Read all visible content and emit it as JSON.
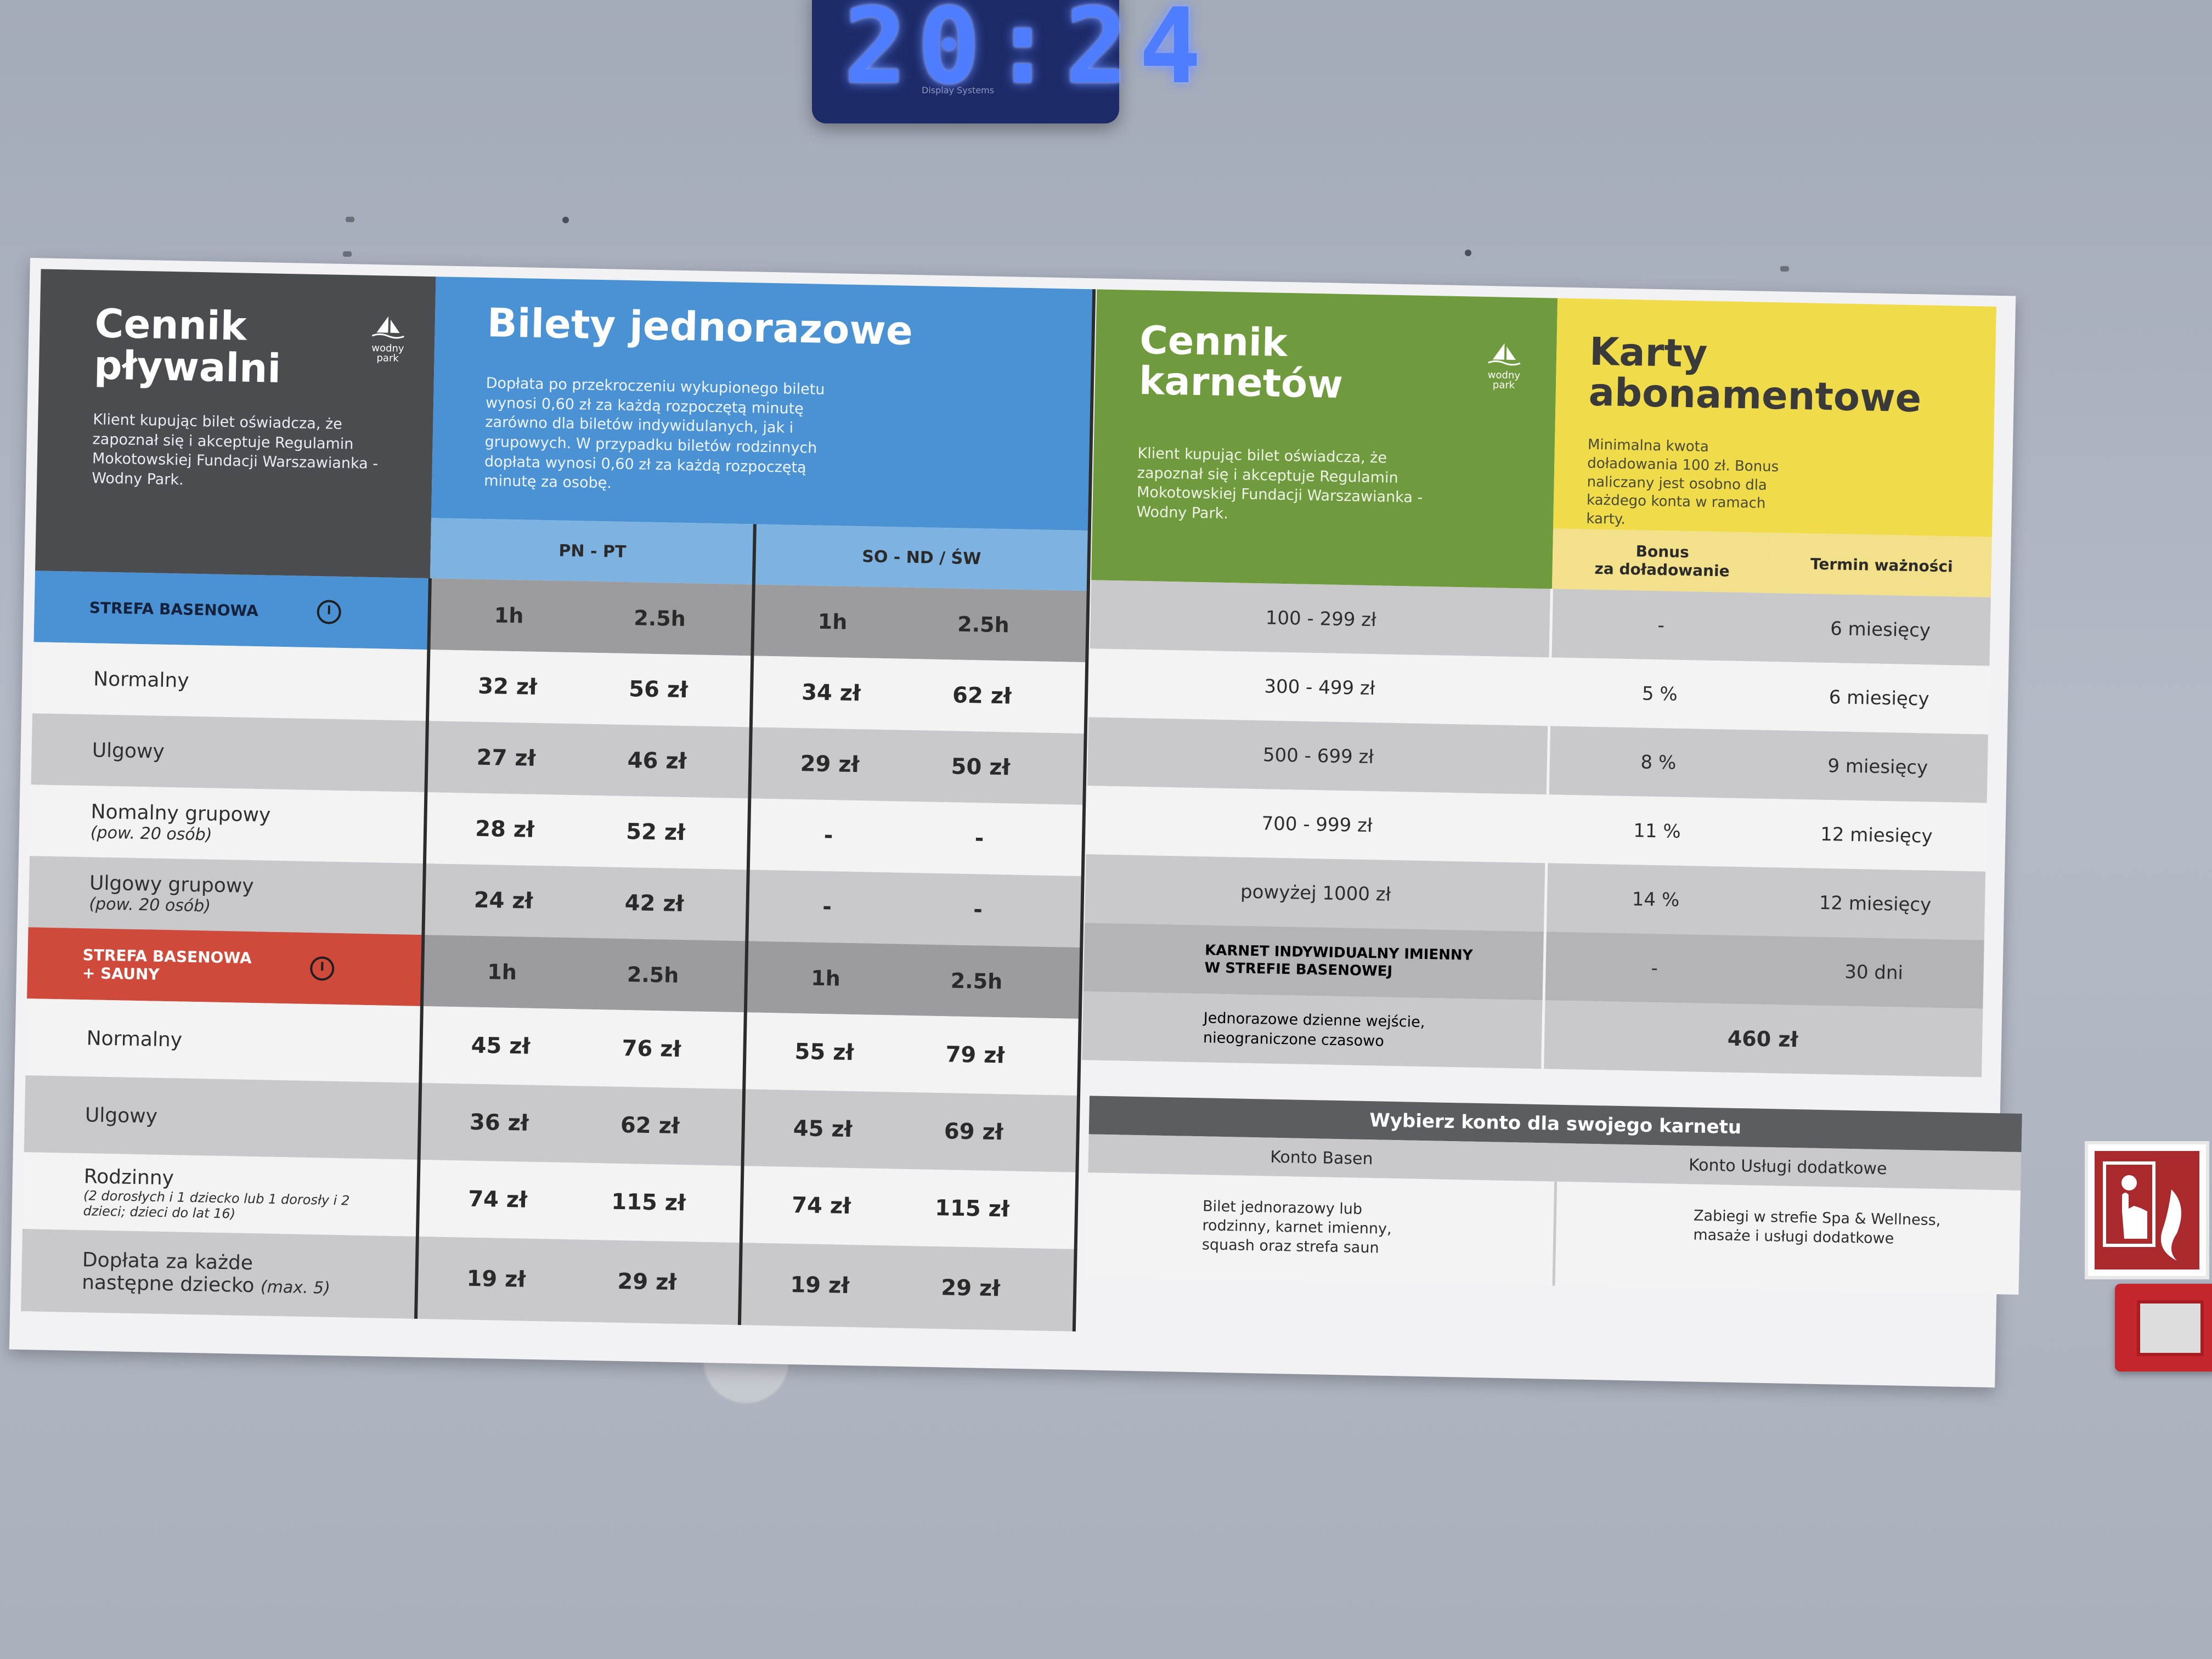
{
  "clock": {
    "display": "20:24",
    "brand": "Display Systems"
  },
  "pool": {
    "title_line1": "Cennik",
    "title_line2": "pływalni",
    "logo": "wodny park",
    "disclaimer": "Klient kupując bilet oświadcza, że zapoznał się i akceptuje Regulamin Mokotowskiej Fundacji Warszawianka - Wodny Park."
  },
  "tickets": {
    "title": "Bilety jednorazowe",
    "note": "Dopłata po przekroczeniu wykupionego biletu wynosi 0,60 zł za każdą rozpoczętą minutę zarówno dla biletów indywidulanych, jak i grupowych. W przypadku biletów rodzinnych dopłata wynosi 0,60 zł za każdą rozpoczętą minutę za osobę.",
    "weekday_header": "PN - PT",
    "weekend_header": "SO - ND / ŚW",
    "dur_1h": "1h",
    "dur_25h": "2.5h"
  },
  "zone1": {
    "label": "STREFA BASENOWA",
    "rows": [
      {
        "name": "Normalny",
        "sub": "",
        "pn1": "32 zł",
        "pn25": "56 zł",
        "so1": "34 zł",
        "so25": "62 zł"
      },
      {
        "name": "Ulgowy",
        "sub": "",
        "pn1": "27 zł",
        "pn25": "46 zł",
        "so1": "29 zł",
        "so25": "50 zł"
      },
      {
        "name": "Nomalny grupowy",
        "sub": "(pow. 20 osób)",
        "pn1": "28 zł",
        "pn25": "52 zł",
        "so1": "-",
        "so25": "-"
      },
      {
        "name": "Ulgowy grupowy",
        "sub": "(pow. 20 osób)",
        "pn1": "24 zł",
        "pn25": "42 zł",
        "so1": "-",
        "so25": "-"
      }
    ]
  },
  "zone2": {
    "label_line1": "STREFA BASENOWA",
    "label_line2": "+ SAUNY",
    "rows": [
      {
        "name": "Normalny",
        "sub": "",
        "pn1": "45 zł",
        "pn25": "76 zł",
        "so1": "55 zł",
        "so25": "79 zł"
      },
      {
        "name": "Ulgowy",
        "sub": "",
        "pn1": "36 zł",
        "pn25": "62 zł",
        "so1": "45 zł",
        "so25": "69 zł"
      },
      {
        "name": "Rodzinny",
        "sub": "(2 dorosłych i 1 dziecko lub 1 dorosły i 2 dzieci; dzieci do lat 16)",
        "pn1": "74 zł",
        "pn25": "115 zł",
        "so1": "74 zł",
        "so25": "115 zł"
      },
      {
        "name": "Dopłata za każde",
        "name2": "następne dziecko",
        "sub": "(max. 5)",
        "pn1": "19 zł",
        "pn25": "29 zł",
        "so1": "19 zł",
        "so25": "29 zł"
      }
    ]
  },
  "karnety": {
    "title_line1": "Cennik",
    "title_line2": "karnetów",
    "logo": "wodny park",
    "disclaimer": "Klient kupując bilet oświadcza, że zapoznał się i akceptuje Regulamin Mokotowskiej Fundacji Warszawianka - Wodny Park."
  },
  "cards": {
    "title_line1": "Karty",
    "title_line2": "abonamentowe",
    "note": "Minimalna kwota doładowania 100 zł. Bonus naliczany jest osobno dla każdego konta w ramach karty.",
    "bonus_header_line1": "Bonus",
    "bonus_header_line2": "za doładowanie",
    "validity_header": "Termin ważności",
    "rows": [
      {
        "range": "100 - 299 zł",
        "bonus": "-",
        "validity": "6 miesięcy"
      },
      {
        "range": "300 - 499 zł",
        "bonus": "5 %",
        "validity": "6 miesięcy"
      },
      {
        "range": "500 - 699 zł",
        "bonus": "8 %",
        "validity": "9 miesięcy"
      },
      {
        "range": "700 - 999 zł",
        "bonus": "11 %",
        "validity": "12 miesięcy"
      },
      {
        "range": "powyżej 1000 zł",
        "bonus": "14 %",
        "validity": "12 miesięcy"
      }
    ],
    "individual_line1": "KARNET INDYWIDUALNY IMIENNY",
    "individual_line2": "W STREFIE BASENOWEJ",
    "individual_bonus": "-",
    "individual_validity": "30 dni",
    "daily_line1": "Jednorazowe dzienne wejście,",
    "daily_line2": "nieograniczone czasowo",
    "daily_price": "460 zł"
  },
  "accounts": {
    "header": "Wybierz konto dla swojego karnetu",
    "basen_title": "Konto Basen",
    "basen_desc": "Bilet jednorazowy lub rodzinny, karnet imienny, squash oraz strefa saun",
    "extra_title": "Konto Usługi dodatkowe",
    "extra_desc": "Zabiegi w strefie Spa & Wellness, masaże i usługi dodatkowe"
  },
  "colors": {
    "dark": "#4a4c50",
    "blue": "#4a92d4",
    "light_blue": "#7eb2e0",
    "green": "#6f9a3e",
    "yellow": "#f0dc4a",
    "yellow_light": "#f3e08a",
    "red": "#d04a3b",
    "row_grey": "#c9c9cb",
    "row_white": "#f3f3f4"
  }
}
